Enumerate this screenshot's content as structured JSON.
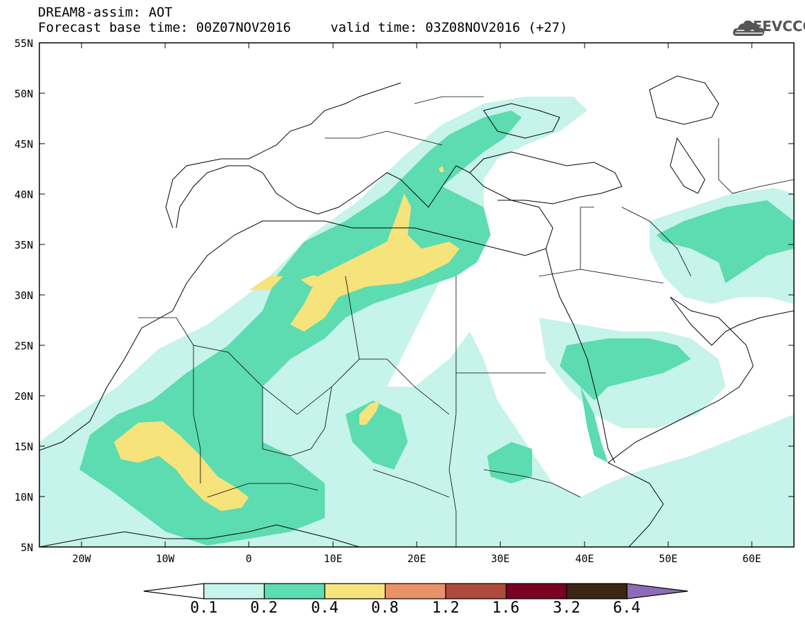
{
  "header": {
    "line1": "DREAM8-assim: AOT",
    "line2": "Forecast base time: 00Z07NOV2016     valid time: 03Z08NOV2016 (+27)",
    "logo_text": "SEEVCCC"
  },
  "map": {
    "lat_labels": [
      "55N",
      "50N",
      "45N",
      "40N",
      "35N",
      "30N",
      "25N",
      "20N",
      "15N",
      "10N",
      "5N"
    ],
    "lon_labels": [
      "20W",
      "10W",
      "0",
      "10E",
      "20E",
      "30E",
      "40E",
      "50E",
      "60E"
    ],
    "lon_range": [
      -25,
      65
    ],
    "lat_range": [
      5,
      55
    ]
  },
  "colorbar": {
    "labels": [
      "0.1",
      "0.2",
      "0.4",
      "0.8",
      "1.2",
      "1.6",
      "3.2",
      "6.4"
    ],
    "colors": [
      "#ffffff",
      "#c6f3ea",
      "#5cdcb0",
      "#f6e37c",
      "#e9926a",
      "#b04b3c",
      "#7a0024",
      "#3d2513",
      "#8c6db5"
    ]
  },
  "colors": {
    "aot_0_1": "#c6f3ea",
    "aot_0_2": "#5cdcb0",
    "aot_0_4": "#f6e37c"
  }
}
